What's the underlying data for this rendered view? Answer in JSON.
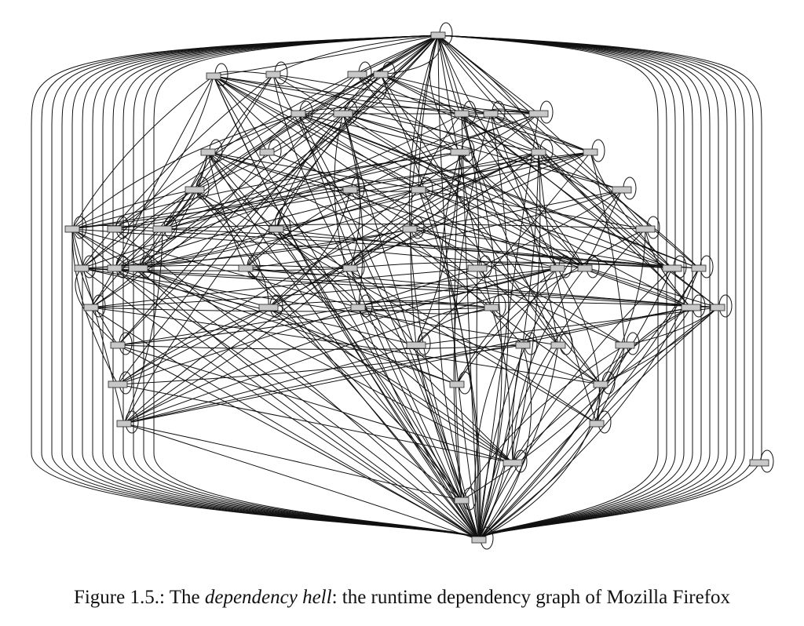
{
  "figure": {
    "caption": {
      "label": "Figure 1.5.:",
      "prefix": "The",
      "emphasis": "dependency hell",
      "suffix": ": the runtime dependency graph of Mozilla Firefox"
    },
    "graph": {
      "node_count": 52,
      "node_fill": "#c8c8c8",
      "edge_color": "#111111"
    }
  }
}
